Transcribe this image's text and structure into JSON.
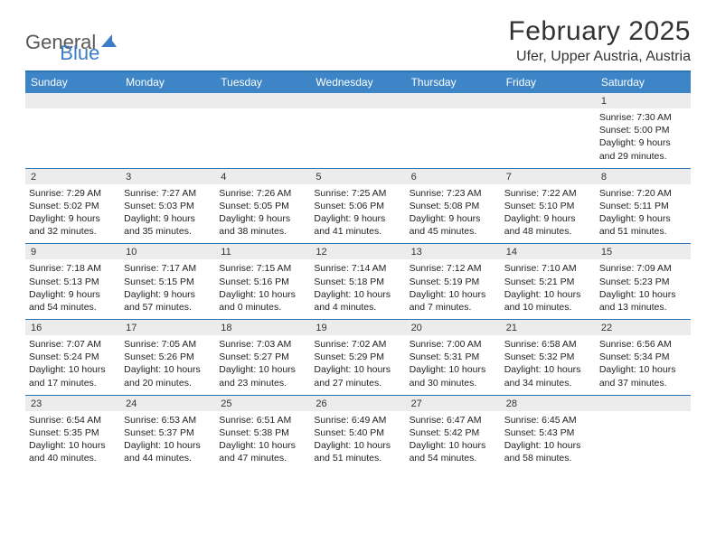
{
  "logo": {
    "part1": "General",
    "part2": "Blue"
  },
  "title": "February 2025",
  "location": "Ufer, Upper Austria, Austria",
  "colors": {
    "header_bar": "#3d85c6",
    "rule": "#2e75b6",
    "daynum_bg": "#ececec",
    "logo_gray": "#595959",
    "logo_blue": "#3d7cc9",
    "text": "#222222"
  },
  "days_of_week": [
    "Sunday",
    "Monday",
    "Tuesday",
    "Wednesday",
    "Thursday",
    "Friday",
    "Saturday"
  ],
  "weeks": [
    [
      {
        "n": "",
        "sunrise": "",
        "sunset": "",
        "daylight": ""
      },
      {
        "n": "",
        "sunrise": "",
        "sunset": "",
        "daylight": ""
      },
      {
        "n": "",
        "sunrise": "",
        "sunset": "",
        "daylight": ""
      },
      {
        "n": "",
        "sunrise": "",
        "sunset": "",
        "daylight": ""
      },
      {
        "n": "",
        "sunrise": "",
        "sunset": "",
        "daylight": ""
      },
      {
        "n": "",
        "sunrise": "",
        "sunset": "",
        "daylight": ""
      },
      {
        "n": "1",
        "sunrise": "Sunrise: 7:30 AM",
        "sunset": "Sunset: 5:00 PM",
        "daylight": "Daylight: 9 hours and 29 minutes."
      }
    ],
    [
      {
        "n": "2",
        "sunrise": "Sunrise: 7:29 AM",
        "sunset": "Sunset: 5:02 PM",
        "daylight": "Daylight: 9 hours and 32 minutes."
      },
      {
        "n": "3",
        "sunrise": "Sunrise: 7:27 AM",
        "sunset": "Sunset: 5:03 PM",
        "daylight": "Daylight: 9 hours and 35 minutes."
      },
      {
        "n": "4",
        "sunrise": "Sunrise: 7:26 AM",
        "sunset": "Sunset: 5:05 PM",
        "daylight": "Daylight: 9 hours and 38 minutes."
      },
      {
        "n": "5",
        "sunrise": "Sunrise: 7:25 AM",
        "sunset": "Sunset: 5:06 PM",
        "daylight": "Daylight: 9 hours and 41 minutes."
      },
      {
        "n": "6",
        "sunrise": "Sunrise: 7:23 AM",
        "sunset": "Sunset: 5:08 PM",
        "daylight": "Daylight: 9 hours and 45 minutes."
      },
      {
        "n": "7",
        "sunrise": "Sunrise: 7:22 AM",
        "sunset": "Sunset: 5:10 PM",
        "daylight": "Daylight: 9 hours and 48 minutes."
      },
      {
        "n": "8",
        "sunrise": "Sunrise: 7:20 AM",
        "sunset": "Sunset: 5:11 PM",
        "daylight": "Daylight: 9 hours and 51 minutes."
      }
    ],
    [
      {
        "n": "9",
        "sunrise": "Sunrise: 7:18 AM",
        "sunset": "Sunset: 5:13 PM",
        "daylight": "Daylight: 9 hours and 54 minutes."
      },
      {
        "n": "10",
        "sunrise": "Sunrise: 7:17 AM",
        "sunset": "Sunset: 5:15 PM",
        "daylight": "Daylight: 9 hours and 57 minutes."
      },
      {
        "n": "11",
        "sunrise": "Sunrise: 7:15 AM",
        "sunset": "Sunset: 5:16 PM",
        "daylight": "Daylight: 10 hours and 0 minutes."
      },
      {
        "n": "12",
        "sunrise": "Sunrise: 7:14 AM",
        "sunset": "Sunset: 5:18 PM",
        "daylight": "Daylight: 10 hours and 4 minutes."
      },
      {
        "n": "13",
        "sunrise": "Sunrise: 7:12 AM",
        "sunset": "Sunset: 5:19 PM",
        "daylight": "Daylight: 10 hours and 7 minutes."
      },
      {
        "n": "14",
        "sunrise": "Sunrise: 7:10 AM",
        "sunset": "Sunset: 5:21 PM",
        "daylight": "Daylight: 10 hours and 10 minutes."
      },
      {
        "n": "15",
        "sunrise": "Sunrise: 7:09 AM",
        "sunset": "Sunset: 5:23 PM",
        "daylight": "Daylight: 10 hours and 13 minutes."
      }
    ],
    [
      {
        "n": "16",
        "sunrise": "Sunrise: 7:07 AM",
        "sunset": "Sunset: 5:24 PM",
        "daylight": "Daylight: 10 hours and 17 minutes."
      },
      {
        "n": "17",
        "sunrise": "Sunrise: 7:05 AM",
        "sunset": "Sunset: 5:26 PM",
        "daylight": "Daylight: 10 hours and 20 minutes."
      },
      {
        "n": "18",
        "sunrise": "Sunrise: 7:03 AM",
        "sunset": "Sunset: 5:27 PM",
        "daylight": "Daylight: 10 hours and 23 minutes."
      },
      {
        "n": "19",
        "sunrise": "Sunrise: 7:02 AM",
        "sunset": "Sunset: 5:29 PM",
        "daylight": "Daylight: 10 hours and 27 minutes."
      },
      {
        "n": "20",
        "sunrise": "Sunrise: 7:00 AM",
        "sunset": "Sunset: 5:31 PM",
        "daylight": "Daylight: 10 hours and 30 minutes."
      },
      {
        "n": "21",
        "sunrise": "Sunrise: 6:58 AM",
        "sunset": "Sunset: 5:32 PM",
        "daylight": "Daylight: 10 hours and 34 minutes."
      },
      {
        "n": "22",
        "sunrise": "Sunrise: 6:56 AM",
        "sunset": "Sunset: 5:34 PM",
        "daylight": "Daylight: 10 hours and 37 minutes."
      }
    ],
    [
      {
        "n": "23",
        "sunrise": "Sunrise: 6:54 AM",
        "sunset": "Sunset: 5:35 PM",
        "daylight": "Daylight: 10 hours and 40 minutes."
      },
      {
        "n": "24",
        "sunrise": "Sunrise: 6:53 AM",
        "sunset": "Sunset: 5:37 PM",
        "daylight": "Daylight: 10 hours and 44 minutes."
      },
      {
        "n": "25",
        "sunrise": "Sunrise: 6:51 AM",
        "sunset": "Sunset: 5:38 PM",
        "daylight": "Daylight: 10 hours and 47 minutes."
      },
      {
        "n": "26",
        "sunrise": "Sunrise: 6:49 AM",
        "sunset": "Sunset: 5:40 PM",
        "daylight": "Daylight: 10 hours and 51 minutes."
      },
      {
        "n": "27",
        "sunrise": "Sunrise: 6:47 AM",
        "sunset": "Sunset: 5:42 PM",
        "daylight": "Daylight: 10 hours and 54 minutes."
      },
      {
        "n": "28",
        "sunrise": "Sunrise: 6:45 AM",
        "sunset": "Sunset: 5:43 PM",
        "daylight": "Daylight: 10 hours and 58 minutes."
      },
      {
        "n": "",
        "sunrise": "",
        "sunset": "",
        "daylight": ""
      }
    ]
  ]
}
